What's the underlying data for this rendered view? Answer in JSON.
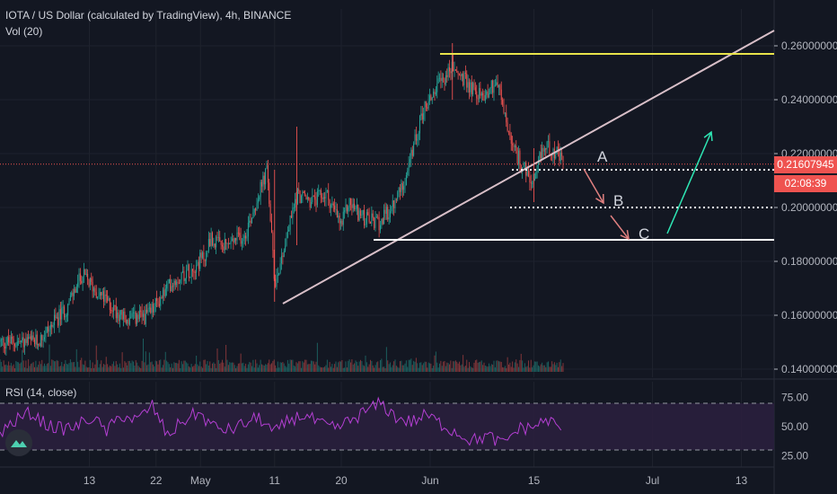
{
  "header": {
    "symbol_line": "IOTA / US Dollar (calculated by TradingView), 4h, BINANCE",
    "volume_label": "Vol (20)",
    "rsi_label": "RSI (14, close)"
  },
  "price_axis": {
    "ticks": [
      "0.26000000",
      "0.24000000",
      "0.22000000",
      "0.20000000",
      "0.18000000",
      "0.16000000",
      "0.14000000"
    ],
    "last_price": "0.21607945",
    "countdown": "02:08:39"
  },
  "rsi_axis": {
    "ticks": [
      "75.00",
      "50.00",
      "25.00"
    ]
  },
  "time_axis": {
    "ticks": [
      "13",
      "22",
      "May",
      "11",
      "20",
      "Jun",
      "15",
      "Jul",
      "13"
    ]
  },
  "annotations": {
    "a": "A",
    "b": "B",
    "c": "C"
  },
  "colors": {
    "background": "#131722",
    "up": "#26a69a",
    "down": "#ef5350",
    "grid": "#1e222d",
    "trendline": "#d8bfc8",
    "resistance": "#e8e34a",
    "support": "#ffffff",
    "projection_up": "#2ee6b4",
    "projection_down": "#e08080",
    "rsi_line": "#b43fd3",
    "rsi_band": "#2a1f3d",
    "axis_text": "#b2b5be"
  },
  "chart_data": {
    "type": "candlestick",
    "symbol": "IOTA / US Dollar (calculated by TradingView)",
    "interval": "4h",
    "exchange": "BINANCE",
    "y_range": [
      0.14,
      0.265
    ],
    "last_price": 0.21607945,
    "key_levels": {
      "resistance": 0.257,
      "support_a": 0.214,
      "support_b": 0.2,
      "support_c": 0.188
    },
    "close_path": [
      [
        "Apr 6",
        0.15
      ],
      [
        "Apr 10",
        0.163
      ],
      [
        "Apr 12",
        0.175
      ],
      [
        "Apr 15",
        0.166
      ],
      [
        "Apr 18",
        0.158
      ],
      [
        "Apr 21",
        0.16
      ],
      [
        "Apr 24",
        0.172
      ],
      [
        "Apr 27",
        0.178
      ],
      [
        "Apr 29",
        0.183
      ],
      [
        "May 1",
        0.191
      ],
      [
        "May 4",
        0.185
      ],
      [
        "May 7",
        0.19
      ],
      [
        "May 10",
        0.214
      ],
      [
        "May 11",
        0.172
      ],
      [
        "May 12",
        0.182
      ],
      [
        "May 14",
        0.205
      ],
      [
        "May 16",
        0.202
      ],
      [
        "May 18",
        0.205
      ],
      [
        "May 20",
        0.193
      ],
      [
        "May 21",
        0.202
      ],
      [
        "May 23",
        0.196
      ],
      [
        "May 25",
        0.194
      ],
      [
        "May 27",
        0.2
      ],
      [
        "May 29",
        0.214
      ],
      [
        "May 31",
        0.236
      ],
      [
        "Jun 2",
        0.245
      ],
      [
        "Jun 4",
        0.252
      ],
      [
        "Jun 6",
        0.246
      ],
      [
        "Jun 8",
        0.241
      ],
      [
        "Jun 10",
        0.247
      ],
      [
        "Jun 11",
        0.235
      ],
      [
        "Jun 12",
        0.222
      ],
      [
        "Jun 13",
        0.218
      ],
      [
        "Jun 15",
        0.207
      ],
      [
        "Jun 16",
        0.221
      ],
      [
        "Jun 17",
        0.223
      ],
      [
        "Jun 18",
        0.22
      ],
      [
        "Jun 19",
        0.216
      ]
    ],
    "rsi": {
      "period": 14,
      "y_range": [
        20,
        80
      ],
      "band": [
        30,
        70
      ],
      "values": [
        45,
        55,
        62,
        52,
        48,
        50,
        58,
        46,
        60,
        55,
        68,
        42,
        55,
        62,
        50,
        47,
        52,
        58,
        44,
        56,
        60,
        52,
        48,
        55,
        63,
        70,
        58,
        54,
        60,
        52,
        45,
        38,
        42,
        35,
        48,
        50,
        56,
        45
      ]
    }
  }
}
